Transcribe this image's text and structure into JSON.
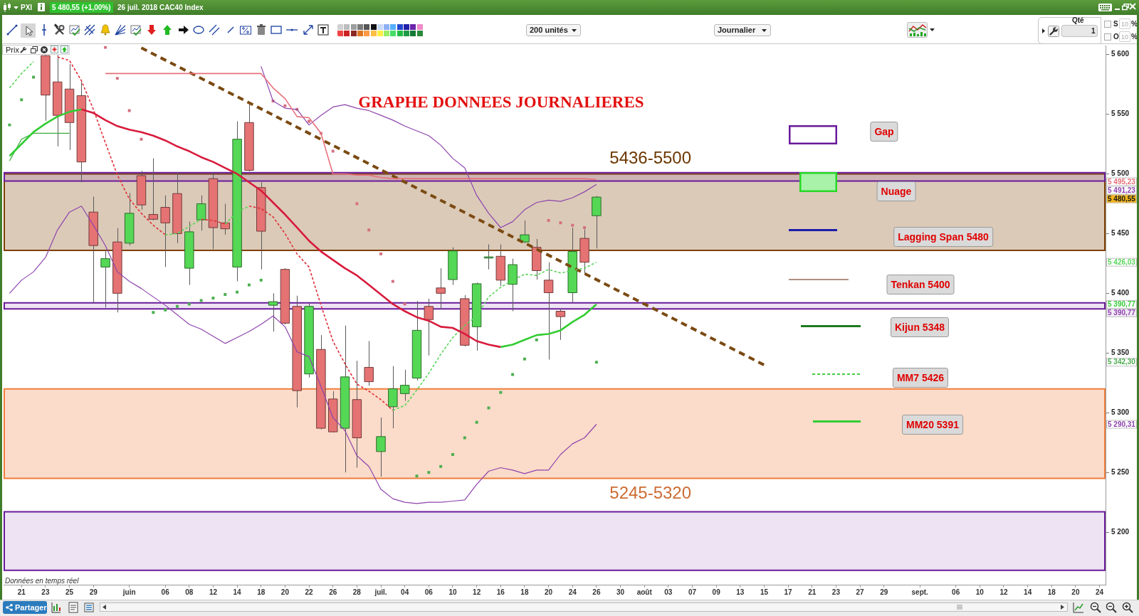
{
  "chart_data": {
    "type": "candlestick",
    "title": "GRAPHE DONNEES JOURNALIERES",
    "categories": [
      null,
      "21",
      null,
      "23",
      null,
      "25",
      null,
      "29",
      null,
      null,
      "juin",
      null,
      null,
      "06",
      null,
      "08",
      null,
      "12",
      null,
      "14",
      null,
      "18",
      null,
      "20",
      null,
      "22",
      null,
      "26",
      null,
      "28",
      null,
      "juil.",
      null,
      "04",
      null,
      "06",
      null,
      "10",
      null,
      "12",
      null,
      "16",
      null,
      "18",
      null,
      "20",
      null,
      "24",
      null,
      "26",
      null,
      "30",
      null,
      "août",
      null,
      "03",
      null,
      "07",
      null,
      "09",
      null,
      "13",
      null,
      "15",
      null,
      "17",
      null,
      "21",
      null,
      "23",
      null,
      "27",
      null,
      "29",
      null,
      null,
      "sept.",
      null,
      null,
      "06",
      null,
      "10",
      null,
      "12",
      null,
      "14",
      null,
      "18",
      null,
      "20",
      null,
      "24"
    ],
    "ylim": [
      5156,
      5607
    ],
    "yticks": [
      {
        "value": 5200,
        "label": "5 200"
      },
      {
        "value": 5250,
        "label": "5 250"
      },
      {
        "value": 5300,
        "label": "5 300"
      },
      {
        "value": 5350,
        "label": "5 350"
      },
      {
        "value": 5400,
        "label": "5 400"
      },
      {
        "value": 5450,
        "label": "5 450"
      },
      {
        "value": 5500,
        "label": "5 500"
      },
      {
        "value": 5550,
        "label": "5 550"
      },
      {
        "value": 5600,
        "label": "5 600"
      }
    ],
    "ohlc": [
      null,
      null,
      null,
      [
        5599,
        5599.5,
        5544.5,
        5566
      ],
      [
        5577,
        5599.5,
        5523,
        5549
      ],
      [
        5571,
        5592,
        5520,
        5543
      ],
      [
        5565.5,
        5577,
        5493,
        5510
      ],
      [
        5468,
        5481,
        5391.5,
        5440
      ],
      [
        5422,
        5436,
        5388,
        5429
      ],
      [
        5443,
        5454.5,
        5384,
        5400
      ],
      [
        5442,
        5484,
        5440,
        5467
      ],
      [
        5498.5,
        5502.5,
        5470,
        5474
      ],
      [
        5466,
        5513,
        5461,
        5462
      ],
      [
        5472,
        5482,
        5422,
        5459
      ],
      [
        5483.5,
        5501.5,
        5442,
        5450
      ],
      [
        5421,
        5460,
        5407,
        5451.5
      ],
      [
        5461.5,
        5482,
        5452.5,
        5475
      ],
      [
        5496,
        5501,
        5437,
        5455
      ],
      [
        5459,
        5475,
        5449,
        5454
      ],
      [
        5422,
        5544,
        5410,
        5529
      ],
      [
        5543,
        5560,
        5502,
        5503
      ],
      [
        5488.5,
        5493,
        5420,
        5452
      ],
      [
        5390,
        5400,
        5368,
        5393
      ],
      [
        5420,
        5421,
        5374,
        5375
      ],
      [
        5389,
        5398,
        5304.5,
        5318.5
      ],
      [
        5332.5,
        5391.5,
        5329.5,
        5389
      ],
      [
        5353,
        5365,
        5286,
        5287
      ],
      [
        5311.5,
        5318,
        5283.5,
        5284
      ],
      [
        5287,
        5373,
        5250,
        5330
      ],
      [
        5311,
        5343.5,
        5254,
        5279
      ],
      [
        5338,
        5360,
        5322.5,
        5326
      ],
      [
        5267.5,
        5296,
        5246.5,
        5280
      ],
      [
        5305,
        5339,
        5287,
        5320
      ],
      [
        5316,
        5336,
        5310,
        5323
      ],
      [
        5329,
        5393.5,
        5327,
        5369
      ],
      [
        5389,
        5395.5,
        5348,
        5378
      ],
      [
        5404.5,
        5421,
        5386.5,
        5400
      ],
      [
        5411.5,
        5438.5,
        5407,
        5435.5
      ],
      [
        5395.5,
        5398.5,
        5355.5,
        5356.5
      ],
      [
        5372,
        5409,
        5352,
        5408
      ],
      [
        5429.5,
        5441,
        5420,
        5430.5
      ],
      [
        5431,
        5441,
        5406,
        5411
      ],
      [
        5407.5,
        5429,
        5385,
        5424
      ],
      [
        5443,
        5461,
        5442,
        5449
      ],
      [
        5438.5,
        5445.5,
        5411.5,
        5419
      ],
      [
        5411,
        5426,
        5344.5,
        5400.5
      ],
      [
        5385,
        5387,
        5361,
        5380.5
      ],
      [
        5400.5,
        5455,
        5392,
        5435
      ],
      [
        5446,
        5453.5,
        5416.5,
        5426
      ],
      [
        5465,
        5481.5,
        5437.5,
        5480.55
      ],
      null,
      null,
      null,
      null,
      null,
      null,
      null,
      null,
      null,
      null,
      null,
      null,
      null,
      null,
      null,
      null,
      null,
      null,
      null,
      null,
      null,
      null,
      null,
      null,
      null,
      null,
      null,
      null,
      null,
      null,
      null,
      null,
      null,
      null,
      null,
      null,
      null,
      null,
      null,
      null,
      null,
      null
    ],
    "colors": [
      null,
      null,
      null,
      "#e57373",
      "#e57373",
      "#e57373",
      "#e57373",
      "#e57373",
      "#55d855",
      "#e57373",
      "#55d855",
      "#e57373",
      "#e57373",
      "#e57373",
      "#e57373",
      "#55d855",
      "#55d855",
      "#e57373",
      "#e57373",
      "#55d855",
      "#e57373",
      "#e57373",
      "#55d855",
      "#e57373",
      "#e57373",
      "#55d855",
      "#e57373",
      "#e57373",
      "#55d855",
      "#e57373",
      "#e57373",
      "#55d855",
      "#55d855",
      "#55d855",
      "#55d855",
      "#e57373",
      "#e57373",
      "#55d855",
      "#e57373",
      "#55d855",
      "#55d855",
      "#e57373",
      "#55d855",
      "#55d855",
      "#e57373",
      "#e57373",
      "#e57373",
      "#55d855",
      "#e57373",
      "#55d855",
      null,
      null,
      null,
      null,
      null,
      null,
      null,
      null,
      null,
      null,
      null,
      null,
      null,
      null,
      null,
      null,
      null,
      null,
      null,
      null,
      null,
      null,
      null,
      null,
      null,
      null,
      null,
      null,
      null,
      null,
      null,
      null,
      null,
      null,
      null,
      null,
      null,
      null,
      null,
      null,
      null,
      null
    ],
    "series": [
      {
        "type": "line",
        "color": "#e8707a",
        "values": [
          null,
          null,
          null,
          null,
          null,
          null,
          null,
          null,
          5584,
          5584,
          5584,
          5584,
          5584,
          5584,
          5584,
          5584,
          5584,
          5584,
          5584,
          5584,
          5584,
          5584,
          5572,
          5563,
          5548,
          5547,
          5534,
          5500,
          5500,
          5499,
          5499,
          5497,
          5496,
          5496,
          5496,
          5496,
          5496,
          5496,
          5496,
          5496,
          5496,
          5496,
          5496,
          5496,
          5496,
          5496,
          5496,
          5496,
          5496,
          5495.23,
          null,
          null,
          null,
          null,
          null,
          null,
          null,
          null,
          null,
          null,
          null,
          null,
          null,
          null,
          null,
          null,
          null,
          null,
          null,
          null,
          null,
          null,
          null,
          null,
          null,
          null,
          null,
          null,
          null,
          null,
          null,
          null,
          null,
          null,
          null,
          null,
          null,
          null,
          null,
          null,
          null,
          null
        ]
      },
      {
        "type": "line",
        "color": "#8e44ad",
        "values": [
          null,
          null,
          null,
          null,
          null,
          null,
          null,
          null,
          null,
          null,
          null,
          null,
          null,
          null,
          null,
          null,
          null,
          null,
          null,
          null,
          null,
          5590,
          5561,
          5555,
          5554,
          5541,
          5549,
          5556,
          5558,
          5555,
          5553,
          5549,
          5545,
          5540,
          5536,
          5532,
          5524,
          5513,
          5505,
          5482,
          5467,
          5455,
          5460,
          5470,
          5476,
          5478,
          5477,
          5480,
          5485,
          5491.23,
          null,
          null,
          null,
          null,
          null,
          null,
          null,
          null,
          null,
          null,
          null,
          null,
          null,
          null,
          null,
          null,
          null,
          null,
          null,
          null,
          null,
          null,
          null,
          null,
          null,
          null,
          null,
          null,
          null,
          null,
          null,
          null,
          null,
          null,
          null,
          null,
          null,
          null,
          null,
          null,
          null,
          null
        ]
      },
      {
        "type": "line",
        "color": "#8e44ad",
        "values": [
          5400,
          5411,
          5418,
          5430,
          5453,
          5468,
          5473,
          5457,
          5440,
          5418,
          5410,
          5404,
          5397,
          5390,
          5382,
          5374,
          5370,
          5364,
          5358,
          5363,
          5368,
          5374,
          5381,
          5372,
          5351,
          5347,
          5322,
          5296,
          5285,
          5264,
          5255,
          5236,
          5228,
          5225,
          5224,
          5225,
          5225,
          5226,
          5227,
          5240,
          5251,
          5254,
          5252,
          5249,
          5252,
          5252,
          5265,
          5274,
          5279,
          5290.31,
          null,
          null,
          null,
          null,
          null,
          null,
          null,
          null,
          null,
          null,
          null,
          null,
          null,
          null,
          null,
          null,
          null,
          null,
          null,
          null,
          null,
          null,
          null,
          null,
          null,
          null,
          null,
          null,
          null,
          null,
          null,
          null,
          null,
          null,
          null,
          null,
          null,
          null,
          null,
          null,
          null,
          null
        ]
      },
      {
        "type": "line",
        "color": "#33cc33",
        "values": [
          5515,
          5525,
          5535,
          5542,
          5548,
          5552,
          5554,
          null,
          null,
          null,
          null,
          null,
          null,
          null,
          null,
          null,
          null,
          null,
          null,
          null,
          null,
          null,
          null,
          null,
          null,
          null,
          null,
          null,
          null,
          null,
          null,
          null,
          null,
          null,
          null,
          null,
          null,
          null,
          null,
          null,
          null,
          5355,
          5357,
          5361,
          5365,
          5366,
          5369,
          5376,
          5382,
          5390.77,
          null,
          null,
          null,
          null,
          null,
          null,
          null,
          null,
          null,
          null,
          null,
          null,
          null,
          null,
          null,
          null,
          null,
          null,
          null,
          null,
          null,
          null,
          null,
          null,
          null,
          null,
          null,
          null,
          null,
          null,
          null,
          null,
          null,
          null,
          null,
          null,
          null,
          null,
          null,
          null,
          null,
          null
        ]
      },
      {
        "type": "line",
        "color": "#d81b3c",
        "values": [
          null,
          null,
          null,
          null,
          null,
          null,
          5554,
          5551,
          5545,
          5540,
          5537,
          5535,
          5532,
          5528,
          5523,
          5519,
          5514,
          5510,
          5505,
          5500,
          5493,
          5486,
          5476,
          5466,
          5455,
          5444,
          5435,
          5428,
          5421,
          5415,
          5407,
          5399,
          5391,
          5385,
          5380,
          5377,
          5372,
          5371,
          5366,
          5360,
          5357,
          5355,
          null,
          null,
          null,
          null,
          null,
          null,
          null,
          null,
          null,
          null,
          null,
          null,
          null,
          null,
          null,
          null,
          null,
          null,
          null,
          null,
          null,
          null,
          null,
          null,
          null,
          null,
          null,
          null,
          null,
          null,
          null,
          null,
          null,
          null,
          null,
          null,
          null,
          null,
          null,
          null,
          null,
          null,
          null,
          null,
          null,
          null,
          null,
          null,
          null,
          null
        ]
      },
      {
        "type": "line",
        "color": "#5ad65a",
        "line_style": "dashed",
        "values": [
          5572,
          5584,
          5594,
          null,
          null,
          null,
          null,
          null,
          null,
          null,
          null,
          null,
          null,
          5449,
          5450,
          5456,
          5462,
          null,
          5458,
          5468,
          5473,
          null,
          null,
          null,
          null,
          null,
          null,
          null,
          null,
          null,
          null,
          null,
          5302,
          5306,
          5319,
          5333,
          5349,
          5363,
          5373,
          5381,
          5397,
          5405,
          5411,
          5416,
          5415,
          5420,
          5417,
          5419,
          5421,
          5426.03,
          null,
          null,
          null,
          null,
          null,
          null,
          null,
          null,
          null,
          null,
          null,
          null,
          null,
          null,
          null,
          null,
          null,
          null,
          null,
          null,
          null,
          null,
          null,
          null,
          null,
          null,
          null,
          null,
          null,
          null,
          null,
          null,
          null,
          null,
          null,
          null,
          null,
          null,
          null,
          null,
          null,
          null
        ]
      },
      {
        "type": "line",
        "color": "#e0303a",
        "line_style": "dashed",
        "values": [
          null,
          null,
          null,
          null,
          5598,
          5595,
          5578,
          5554,
          5526,
          5499,
          5479,
          5467,
          5457,
          5449,
          null,
          null,
          5462,
          5461,
          5458,
          null,
          5473,
          5471,
          5464,
          5450,
          5433,
          5422,
          5390,
          5360,
          5341,
          5324,
          5318,
          5311,
          5302,
          null,
          null,
          null,
          null,
          null,
          null,
          null,
          null,
          null,
          null,
          null,
          null,
          null,
          null,
          null,
          null,
          null,
          null,
          null,
          null,
          null,
          null,
          null,
          null,
          null,
          null,
          null,
          null,
          null,
          null,
          null,
          null,
          null,
          null,
          null,
          null,
          null,
          null,
          null,
          null,
          null,
          null,
          null,
          null,
          null,
          null,
          null,
          null,
          null,
          null,
          null,
          null,
          null,
          null,
          null,
          null,
          null,
          null,
          null
        ]
      },
      {
        "type": "line",
        "color": "#3caa3c",
        "values": [
          5511,
          5529,
          5534,
          5534,
          5534,
          5534,
          null,
          null,
          null,
          null,
          null,
          null,
          null,
          null,
          null,
          null,
          null,
          null,
          null,
          null,
          null,
          null,
          null,
          null,
          null,
          null,
          null,
          null,
          null,
          null,
          null,
          null,
          null,
          null,
          null,
          null,
          null,
          null,
          null,
          null,
          null,
          null,
          null,
          null,
          null,
          null,
          null,
          null,
          null,
          null,
          null,
          null,
          null,
          null,
          null,
          null,
          null,
          null,
          null,
          null,
          null,
          null,
          null,
          null,
          null,
          null,
          null,
          null,
          null,
          null,
          null,
          null,
          null,
          null,
          null,
          null,
          null,
          null,
          null,
          null,
          null,
          null,
          null,
          null,
          null,
          null,
          null,
          null,
          null,
          null,
          null,
          null
        ]
      },
      {
        "type": "scatter",
        "marker": "square",
        "values": [
          5541,
          5562,
          5581,
          null,
          null,
          null,
          null,
          null,
          5606,
          5580,
          5553,
          5529,
          5384,
          5386,
          5389,
          5391,
          5394,
          5396,
          5399,
          5401,
          5407,
          5411,
          5561,
          5557,
          5554,
          5544,
          5534,
          5519,
          null,
          5475,
          5453,
          5433,
          5410,
          5391,
          5247,
          5250,
          5255,
          5265,
          5279,
          5292,
          5304,
          5317,
          5332,
          5345,
          5361,
          5461,
          5459,
          5457,
          5455,
          5342.3,
          null,
          null,
          null,
          null,
          null,
          null,
          null,
          null,
          null,
          null,
          null,
          null,
          null,
          null,
          null,
          null,
          null,
          null,
          null,
          null,
          null,
          null,
          null,
          null,
          null,
          null,
          null,
          null,
          null,
          null,
          null,
          null,
          null,
          null,
          null,
          null,
          null,
          null,
          null,
          null,
          null,
          null
        ],
        "colors": [
          "#4caf50",
          "#4caf50",
          "#4caf50",
          null,
          null,
          null,
          null,
          null,
          "#d4707e",
          "#d4707e",
          "#d4707e",
          "#d4707e",
          "#4caf50",
          "#4caf50",
          "#4caf50",
          "#4caf50",
          "#4caf50",
          "#4caf50",
          "#4caf50",
          "#4caf50",
          "#4caf50",
          "#4caf50",
          "#d4707e",
          "#d4707e",
          "#d4707e",
          "#d4707e",
          "#d4707e",
          "#d4707e",
          null,
          "#d4707e",
          "#d4707e",
          "#d4707e",
          "#d4707e",
          "#d4707e",
          "#4caf50",
          "#4caf50",
          "#4caf50",
          "#4caf50",
          "#4caf50",
          "#4caf50",
          "#4caf50",
          "#4caf50",
          "#4caf50",
          "#4caf50",
          "#4caf50",
          "#d4707e",
          "#d4707e",
          "#d4707e",
          "#d4707e",
          "#4caf50",
          null,
          null,
          null,
          null,
          null,
          null,
          null,
          null,
          null,
          null,
          null,
          null,
          null,
          null,
          null,
          null,
          null,
          null,
          null,
          null,
          null,
          null,
          null,
          null,
          null,
          null,
          null,
          null,
          null,
          null,
          null,
          null,
          null,
          null,
          null,
          null,
          null,
          null,
          null,
          null,
          null,
          null
        ]
      },
      {
        "type": "line",
        "color": "#7b4a12",
        "line_style": "dashed",
        "values": [
          null,
          null,
          null,
          null,
          null,
          null,
          null,
          null,
          null,
          null,
          null,
          5605.5,
          null,
          null,
          null,
          null,
          null,
          null,
          null,
          null,
          null,
          null,
          null,
          null,
          null,
          null,
          null,
          null,
          null,
          null,
          null,
          null,
          null,
          null,
          null,
          null,
          null,
          null,
          null,
          null,
          null,
          null,
          null,
          null,
          null,
          null,
          null,
          null,
          null,
          null,
          null,
          null,
          null,
          null,
          null,
          null,
          null,
          null,
          null,
          null,
          null,
          null,
          null,
          5340,
          null,
          null,
          null,
          null,
          null,
          null,
          null,
          null,
          null,
          null,
          null,
          null,
          null,
          null,
          null,
          null,
          null,
          null,
          null,
          null,
          null,
          null,
          null,
          null,
          null,
          null,
          null,
          null
        ]
      }
    ],
    "bands": [
      {
        "axis": "y",
        "from": 5436,
        "to": 5500,
        "label": "5436-5500",
        "color": "#7f3f00"
      },
      {
        "axis": "y",
        "from": 5494,
        "to": 5501,
        "color": "#6a1b9a"
      },
      {
        "axis": "y",
        "from": 5387,
        "to": 5392,
        "color": "#6a1b9a"
      },
      {
        "axis": "y",
        "from": 5245,
        "to": 5320,
        "label": "5245-5320",
        "color": "#f07f3c"
      },
      {
        "axis": "y",
        "from": 5168,
        "to": 5217,
        "color": "#6a1b9a"
      }
    ],
    "annotations": [
      "Gap",
      "Nuage",
      "Lagging Span 5480",
      "Tenkan 5400",
      "Kijun 5348",
      "MM7 5426",
      "MM20 5391",
      "Données en temps réel",
      "PXI",
      "5 480,55 (+1,00%)",
      "26 juil. 2018 CAC40 Index",
      "200 unités",
      "Journalier",
      "Prix",
      "Qté",
      "1",
      "S",
      "10",
      "%",
      "O",
      "10",
      "%",
      "Partager",
      "5 495,23",
      "5 491,23",
      "5 480,55",
      "5 426,03",
      "5 390,77",
      "5 390,77",
      "5 342,30",
      "5 290,31"
    ]
  }
}
